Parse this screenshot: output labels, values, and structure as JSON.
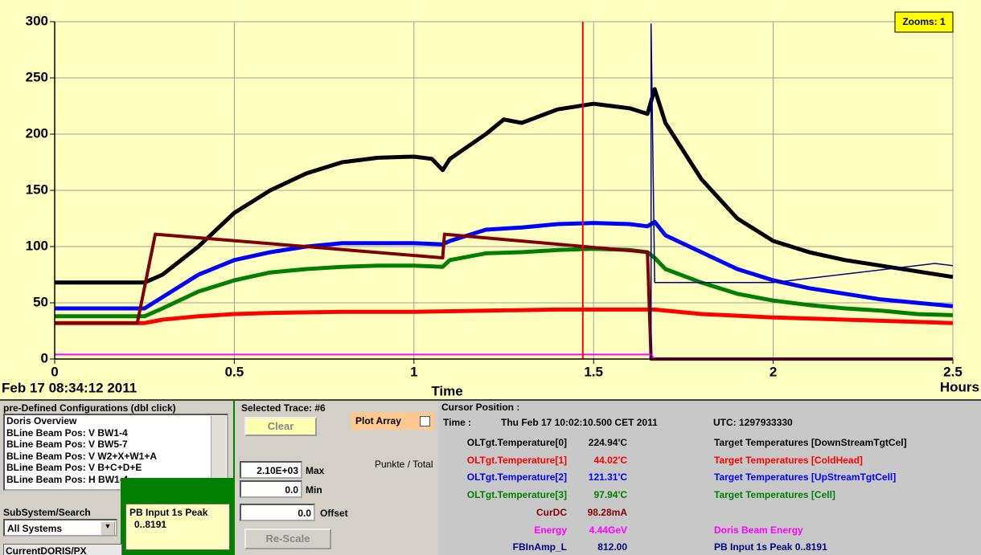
{
  "chart_data": {
    "type": "line",
    "start_label": "Feb 17 08:34:12 2011",
    "x_axis_label": "Time",
    "x_unit_label": "Hours",
    "zoom_label": "Zooms: 1",
    "xlim": [
      0,
      2.5
    ],
    "xticks": [
      0,
      0.5,
      1,
      1.5,
      2,
      2.5
    ],
    "ylim": [
      0,
      300
    ],
    "yticks": [
      0,
      50,
      100,
      150,
      200,
      250,
      300
    ],
    "grid": true,
    "cursor_x": 1.47,
    "cursor_color": "#ff0000",
    "series": [
      {
        "name": "OLTgt.Temperature[0]",
        "color": "#000000",
        "width": 5,
        "x": [
          0,
          0.25,
          0.3,
          0.4,
          0.5,
          0.6,
          0.7,
          0.8,
          0.9,
          1.0,
          1.05,
          1.08,
          1.1,
          1.2,
          1.25,
          1.3,
          1.4,
          1.5,
          1.6,
          1.65,
          1.67,
          1.7,
          1.8,
          1.9,
          2.0,
          2.1,
          2.2,
          2.3,
          2.4,
          2.5
        ],
        "values": [
          68,
          68,
          75,
          100,
          130,
          150,
          165,
          175,
          179,
          180,
          178,
          168,
          178,
          200,
          213,
          210,
          222,
          227,
          223,
          218,
          240,
          210,
          160,
          125,
          105,
          95,
          88,
          83,
          78,
          73
        ]
      },
      {
        "name": "OLTgt.Temperature[1]",
        "color": "#ff0000",
        "width": 5,
        "x": [
          0,
          0.25,
          0.3,
          0.4,
          0.5,
          0.6,
          0.8,
          1.0,
          1.2,
          1.4,
          1.6,
          1.67,
          1.8,
          2.0,
          2.2,
          2.4,
          2.5
        ],
        "values": [
          32,
          32,
          35,
          38,
          40,
          41,
          42,
          42,
          43,
          44,
          44,
          44,
          40,
          37,
          35,
          33,
          32
        ]
      },
      {
        "name": "OLTgt.Temperature[2]",
        "color": "#0000ff",
        "width": 5,
        "x": [
          0,
          0.25,
          0.3,
          0.4,
          0.5,
          0.6,
          0.7,
          0.8,
          0.9,
          1.0,
          1.08,
          1.1,
          1.2,
          1.3,
          1.4,
          1.5,
          1.6,
          1.65,
          1.67,
          1.7,
          1.8,
          1.9,
          2.0,
          2.1,
          2.2,
          2.3,
          2.4,
          2.5
        ],
        "values": [
          45,
          45,
          55,
          75,
          88,
          95,
          100,
          103,
          103,
          103,
          102,
          105,
          115,
          117,
          120,
          121,
          120,
          118,
          122,
          110,
          95,
          80,
          70,
          63,
          58,
          53,
          50,
          47
        ]
      },
      {
        "name": "OLTgt.Temperature[3]",
        "color": "#008000",
        "width": 5,
        "x": [
          0,
          0.25,
          0.3,
          0.4,
          0.5,
          0.6,
          0.7,
          0.8,
          0.9,
          1.0,
          1.08,
          1.1,
          1.2,
          1.3,
          1.4,
          1.5,
          1.6,
          1.65,
          1.67,
          1.7,
          1.8,
          1.9,
          2.0,
          2.1,
          2.2,
          2.3,
          2.4,
          2.5
        ],
        "values": [
          38,
          38,
          45,
          60,
          70,
          77,
          80,
          82,
          83,
          83,
          82,
          88,
          94,
          95,
          97,
          98,
          97,
          95,
          90,
          80,
          68,
          58,
          52,
          48,
          45,
          43,
          40,
          39
        ]
      },
      {
        "name": "CurDC",
        "color": "#800000",
        "width": 4,
        "x": [
          0,
          0.23,
          0.28,
          1.08,
          1.085,
          1.65,
          1.66,
          2.5
        ],
        "values": [
          32,
          32,
          111,
          90,
          111,
          95,
          0,
          0
        ]
      },
      {
        "name": "Energy",
        "color": "#ff00ff",
        "width": 2,
        "x": [
          0,
          1.66,
          1.67,
          2.5
        ],
        "values": [
          4,
          4,
          0,
          0
        ]
      },
      {
        "name": "FBInAmp_L",
        "color": "#000080",
        "width": 1.5,
        "x": [
          1.66,
          1.66,
          1.67,
          2.0,
          2.45,
          2.5
        ],
        "values": [
          0,
          298,
          68,
          68,
          85,
          83
        ]
      }
    ]
  },
  "configurations": {
    "title": "pre-Defined Configurations (dbl click)",
    "items": [
      "Doris Overview",
      "BLine Beam Pos: V BW1-4",
      "BLine Beam Pos: V BW5-7",
      "BLine Beam Pos: V W2+X+W1+A",
      "BLine Beam Pos: V B+C+D+E",
      "BLine Beam Pos: H BW1-4"
    ]
  },
  "subsystem": {
    "title": "SubSystem/Search",
    "selected": "All Systems"
  },
  "peak_box": {
    "title": "PB Input 1s Peak",
    "range": "0..8191"
  },
  "current_tab": "CurrentDORIS/PX",
  "trace_panel": {
    "title": "Selected Trace: #6",
    "clear": "Clear",
    "plot_array": "Plot Array",
    "punkte": "Punkte / Total",
    "max_value": "2.10E+03",
    "max_label": "Max",
    "min_value": "0.0",
    "min_label": "Min",
    "offset_value": "0.0",
    "offset_label": "Offset",
    "rescale": "Re-Scale"
  },
  "cursor_panel": {
    "title": "Cursor Position :",
    "time_label": "Time :",
    "time": "Thu Feb 17 10:02:10.500 CET 2011",
    "utc": "UTC:  1297933330",
    "rows": [
      {
        "value": "224.94'C",
        "description": "Target Temperatures [DownStreamTgtCel]"
      },
      {
        "value": "44.02'C",
        "description": "Target Temperatures [ColdHead]"
      },
      {
        "value": "121.31'C",
        "description": "Target Temperatures [UpStreamTgtCell]"
      },
      {
        "value": "97.94'C",
        "description": "Target Temperatures [Cell]"
      },
      {
        "value": "98.28mA"
      },
      {
        "value": "4.44GeV",
        "description": "Doris Beam Energy"
      },
      {
        "value": "812.00",
        "description": "PB Input 1s Peak  0..8191"
      }
    ]
  }
}
